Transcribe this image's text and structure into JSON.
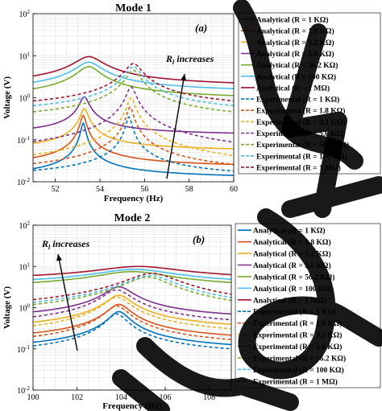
{
  "chart_data": [
    {
      "type": "line",
      "title": "Mode 1",
      "panel_label": "(a)",
      "annotation": {
        "text_main": "R",
        "text_sub": "l",
        "text_rest": " increases"
      },
      "xlabel": "Frequency (Hz)",
      "ylabel": "Voltage (V)",
      "xlim": [
        51,
        60
      ],
      "ylim": [
        0.01,
        100
      ],
      "yscale": "log",
      "grid": true,
      "legend_placement": "outside-right",
      "xticks": [
        "52",
        "54",
        "56",
        "58",
        "60"
      ],
      "yticks": [
        "10^-2",
        "10^-1",
        "10^0",
        "10^1",
        "10^2"
      ],
      "analytical_peak_hz": 53.3,
      "experimental_peak_hz": 55.4,
      "series": [
        {
          "name": "Analytical (R = 1 KΩ)",
          "style": "solid",
          "color": "#0072bd",
          "peak": 0.25,
          "base": 0.011,
          "bw": 0.18,
          "f0": 53.25
        },
        {
          "name": "Analytical (R = 1.8 KΩ)",
          "style": "solid",
          "color": "#d95319",
          "peak": 0.38,
          "base": 0.02,
          "bw": 0.22,
          "f0": 53.25
        },
        {
          "name": "Analytical (R = 3.2 KΩ)",
          "style": "solid",
          "color": "#edb120",
          "peak": 0.55,
          "base": 0.05,
          "bw": 0.3,
          "f0": 53.3
        },
        {
          "name": "Analytical (R = 5.6 KΩ)",
          "style": "solid",
          "color": "#7e2f8e",
          "peak": 1.05,
          "base": 0.12,
          "bw": 0.35,
          "f0": 53.3
        },
        {
          "name": "Analytical (R = 56.2 KΩ)",
          "style": "solid",
          "color": "#77ac30",
          "peak": 5.5,
          "base": 0.8,
          "bw": 0.9,
          "f0": 53.5
        },
        {
          "name": "Analytical (R = 100 KΩ)",
          "style": "solid",
          "color": "#4dbeee",
          "peak": 7.0,
          "base": 1.2,
          "bw": 1.0,
          "f0": 53.5
        },
        {
          "name": "Analytical (R = 1 MΩ)",
          "style": "solid",
          "color": "#a2142f",
          "peak": 9.5,
          "base": 1.6,
          "bw": 1.1,
          "f0": 53.5
        },
        {
          "name": "Experimental (R = 1 KΩ)",
          "style": "dashed",
          "color": "#0072bd",
          "peak": 0.35,
          "base": 0.01,
          "bw": 0.22,
          "f0": 55.3
        },
        {
          "name": "Experimental (R = 1.8 KΩ)",
          "style": "dashed",
          "color": "#d95319",
          "peak": 0.6,
          "base": 0.01,
          "bw": 0.25,
          "f0": 55.35
        },
        {
          "name": "Experimental (R = 3.2 KΩ)",
          "style": "dashed",
          "color": "#edb120",
          "peak": 1.0,
          "base": 0.01,
          "bw": 0.3,
          "f0": 55.4
        },
        {
          "name": "Experimental (R = 5.6 KΩ)",
          "style": "dashed",
          "color": "#7e2f8e",
          "peak": 1.8,
          "base": 0.02,
          "bw": 0.35,
          "f0": 55.4
        },
        {
          "name": "Experimental (R = 56.2 KΩ)",
          "style": "dashed",
          "color": "#77ac30",
          "peak": 4.5,
          "base": 0.2,
          "bw": 0.55,
          "f0": 55.5
        },
        {
          "name": "Experimental (R = 100 KΩ)",
          "style": "dashed",
          "color": "#4dbeee",
          "peak": 5.5,
          "base": 0.3,
          "bw": 0.6,
          "f0": 55.5
        },
        {
          "name": "Experimental (R = 1 MΩ)",
          "style": "dashed",
          "color": "#a2142f",
          "peak": 6.5,
          "base": 0.4,
          "bw": 0.65,
          "f0": 55.5
        }
      ]
    },
    {
      "type": "line",
      "title": "Mode 2",
      "panel_label": "(b)",
      "annotation": {
        "text_main": "R",
        "text_sub": "l",
        "text_rest": " increases"
      },
      "xlabel": "Frequency (Hz)",
      "ylabel": "Voltage (V)",
      "xlim": [
        100,
        109
      ],
      "ylim": [
        0.01,
        100
      ],
      "yscale": "log",
      "grid": true,
      "legend_placement": "outside-right",
      "xticks": [
        "100",
        "102",
        "104",
        "106",
        "108"
      ],
      "yticks": [
        "10^-2",
        "10^-1",
        "10^0",
        "10^1",
        "10^2"
      ],
      "series": [
        {
          "name": "Analytical (R = 1 KΩ)",
          "style": "solid",
          "color": "#0072bd",
          "peak": 0.8,
          "base": 0.07,
          "bw": 0.8,
          "f0": 103.9
        },
        {
          "name": "Analytical (R = 1.8 KΩ)",
          "style": "solid",
          "color": "#d95319",
          "peak": 1.2,
          "base": 0.12,
          "bw": 0.9,
          "f0": 103.9
        },
        {
          "name": "Analytical (R = 3.2 KΩ)",
          "style": "solid",
          "color": "#edb120",
          "peak": 2.0,
          "base": 0.22,
          "bw": 1.0,
          "f0": 103.9
        },
        {
          "name": "Analytical (R = 5.6 KΩ)",
          "style": "solid",
          "color": "#7e2f8e",
          "peak": 3.2,
          "base": 0.4,
          "bw": 1.1,
          "f0": 103.9
        },
        {
          "name": "Analytical (R = 56.2 KΩ)",
          "style": "solid",
          "color": "#77ac30",
          "peak": 7.5,
          "base": 2.5,
          "bw": 3.0,
          "f0": 104.5
        },
        {
          "name": "Analytical (R = 100 KΩ)",
          "style": "solid",
          "color": "#4dbeee",
          "peak": 8.5,
          "base": 3.0,
          "bw": 3.2,
          "f0": 104.6
        },
        {
          "name": "Analytical (R = 1 MΩ)",
          "style": "solid",
          "color": "#a2142f",
          "peak": 10.0,
          "base": 4.0,
          "bw": 3.5,
          "f0": 104.8
        },
        {
          "name": "Experimental (R = 1 KΩ)",
          "style": "dashed",
          "color": "#0072bd",
          "peak": 0.7,
          "base": 0.05,
          "bw": 0.8,
          "f0": 103.8
        },
        {
          "name": "Experimental (R = 1.8 KΩ)",
          "style": "dashed",
          "color": "#d95319",
          "peak": 1.1,
          "base": 0.08,
          "bw": 0.9,
          "f0": 103.8
        },
        {
          "name": "Experimental (R = 3.2 KΩ)",
          "style": "dashed",
          "color": "#edb120",
          "peak": 1.8,
          "base": 0.15,
          "bw": 1.0,
          "f0": 103.8
        },
        {
          "name": "Experimental (R = 5.6 KΩ)",
          "style": "dashed",
          "color": "#7e2f8e",
          "peak": 2.7,
          "base": 0.25,
          "bw": 1.1,
          "f0": 103.8
        },
        {
          "name": "Experimental (R = 56.2 KΩ)",
          "style": "dashed",
          "color": "#77ac30",
          "peak": 5.5,
          "base": 0.3,
          "bw": 1.8,
          "f0": 105.2
        },
        {
          "name": "Experimental (R = 100 KΩ)",
          "style": "dashed",
          "color": "#4dbeee",
          "peak": 6.0,
          "base": 0.35,
          "bw": 1.9,
          "f0": 105.3
        },
        {
          "name": "Experimental (R = 1 MΩ)",
          "style": "dashed",
          "color": "#a2142f",
          "peak": 6.8,
          "base": 0.4,
          "bw": 2.0,
          "f0": 105.4
        }
      ]
    }
  ]
}
